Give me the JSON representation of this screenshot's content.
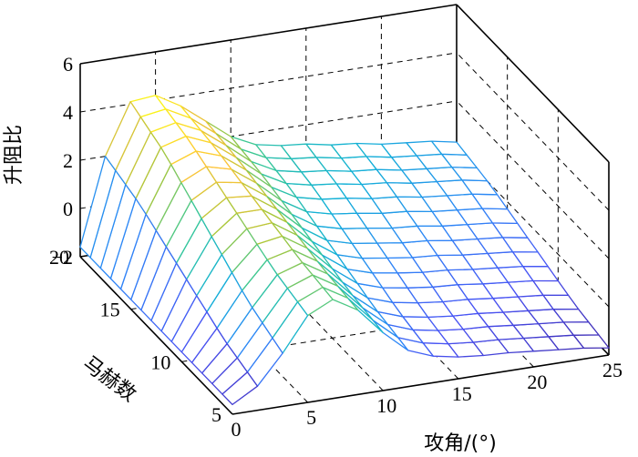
{
  "chart_data": {
    "type": "surface",
    "xlabel": "攻角/(°)",
    "ylabel": "马赫数",
    "zlabel": "升阻比",
    "xlim": [
      0,
      25
    ],
    "ylim": [
      5,
      20
    ],
    "zlim": [
      -2,
      6
    ],
    "x_ticks": [
      "0",
      "5",
      "10",
      "15",
      "20",
      "25"
    ],
    "y_ticks": [
      "5",
      "10",
      "15",
      "20"
    ],
    "z_ticks": [
      "-2",
      "0",
      "2",
      "4",
      "6"
    ],
    "grid": true,
    "colormap": "parula",
    "x": [
      0,
      1.667,
      3.333,
      5,
      6.667,
      8.333,
      10,
      11.667,
      13.333,
      15,
      16.667,
      18.333,
      20,
      21.667,
      23.333,
      25
    ],
    "y": [
      5,
      6,
      7,
      8,
      9,
      10,
      11,
      12,
      13,
      14,
      15,
      16,
      17,
      18,
      19,
      20
    ],
    "z_profile_by_x": [
      -1.6,
      2.0,
      4.1,
      4.2,
      3.6,
      2.8,
      2.0,
      1.5,
      1.3,
      1.2,
      1.0,
      0.9,
      0.7,
      0.6,
      0.5,
      0.3
    ],
    "mach_scale_by_y": [
      0.0,
      0.05,
      0.1,
      0.15,
      0.22,
      0.3,
      0.38,
      0.46,
      0.54,
      0.62,
      0.7,
      0.78,
      0.85,
      0.9,
      0.95,
      1.0
    ],
    "z_low_mach": [
      -1.6,
      -1.0,
      0.2,
      1.6,
      2.1,
      1.5,
      0.4,
      -0.5,
      -0.9,
      -1.1,
      -1.2,
      -1.25,
      -1.35,
      -1.45,
      -1.55,
      -1.7
    ]
  }
}
